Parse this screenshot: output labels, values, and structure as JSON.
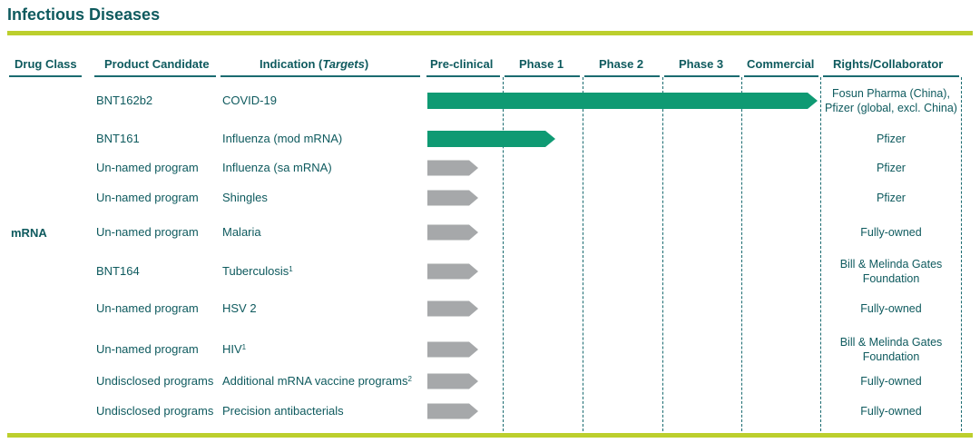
{
  "title": "Infectious Diseases",
  "headers": {
    "drug_class": "Drug Class",
    "product_candidate": "Product Candidate",
    "indication": "Indication",
    "indication_targets": "Targets",
    "preclinical": "Pre-clinical",
    "phase1": "Phase 1",
    "phase2": "Phase 2",
    "phase3": "Phase 3",
    "commercial": "Commercial",
    "rights": "Rights/Collaborator"
  },
  "drug_class_value": "mRNA",
  "colors": {
    "accent_bar": "#bccf2d",
    "teal_text": "#0e5a5e",
    "green_progress": "#0f9a73",
    "gray_progress": "#a6a8aa"
  },
  "rows": [
    {
      "candidate": "BNT162b2",
      "indication": "COVID-19",
      "sup": "",
      "rights": [
        "Fosun Pharma (China),",
        "Pfizer (global, excl. China)"
      ],
      "stage": "commercial",
      "color": "green"
    },
    {
      "candidate": "BNT161",
      "indication": "Influenza (mod mRNA)",
      "sup": "",
      "rights": [
        "Pfizer"
      ],
      "stage": "phase1",
      "color": "green"
    },
    {
      "candidate": "Un-named program",
      "indication": "Influenza (sa mRNA)",
      "sup": "",
      "rights": [
        "Pfizer"
      ],
      "stage": "preclinical",
      "color": "gray"
    },
    {
      "candidate": "Un-named program",
      "indication": "Shingles",
      "sup": "",
      "rights": [
        "Pfizer"
      ],
      "stage": "preclinical",
      "color": "gray"
    },
    {
      "candidate": "Un-named program",
      "indication": "Malaria",
      "sup": "",
      "rights": [
        "Fully-owned"
      ],
      "stage": "preclinical",
      "color": "gray"
    },
    {
      "candidate": "BNT164",
      "indication": "Tuberculosis",
      "sup": "1",
      "rights": [
        "Bill & Melinda Gates",
        "Foundation"
      ],
      "stage": "preclinical",
      "color": "gray"
    },
    {
      "candidate": "Un-named program",
      "indication": "HSV 2",
      "sup": "",
      "rights": [
        "Fully-owned"
      ],
      "stage": "preclinical",
      "color": "gray"
    },
    {
      "candidate": "Un-named program",
      "indication": "HIV",
      "sup": "1",
      "rights": [
        "Bill & Melinda Gates",
        "Foundation"
      ],
      "stage": "preclinical",
      "color": "gray"
    },
    {
      "candidate": "Undisclosed programs",
      "indication": "Additional mRNA vaccine programs",
      "sup": "2",
      "rights": [
        "Fully-owned"
      ],
      "stage": "preclinical",
      "color": "gray"
    },
    {
      "candidate": "Undisclosed programs",
      "indication": "Precision antibacterials",
      "sup": "",
      "rights": [
        "Fully-owned"
      ],
      "stage": "preclinical",
      "color": "gray"
    }
  ]
}
